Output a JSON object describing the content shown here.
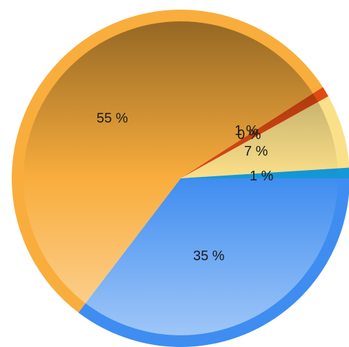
{
  "chart_data": {
    "type": "pie",
    "title": "",
    "legend": "none",
    "slices": [
      {
        "value": 35,
        "label": "35 %",
        "color": "#3f8df0"
      },
      {
        "value": 55,
        "label": "55 %",
        "color": "#f9ad3d"
      },
      {
        "value": 1,
        "label": "1 %",
        "color": "#e04a12"
      },
      {
        "value": 0,
        "label": "0 %",
        "color": "#e04a12"
      },
      {
        "value": 7,
        "label": "7 %",
        "color": "#fbe08a"
      },
      {
        "value": 1,
        "label": "1 %",
        "color": "#1598d8"
      }
    ]
  }
}
